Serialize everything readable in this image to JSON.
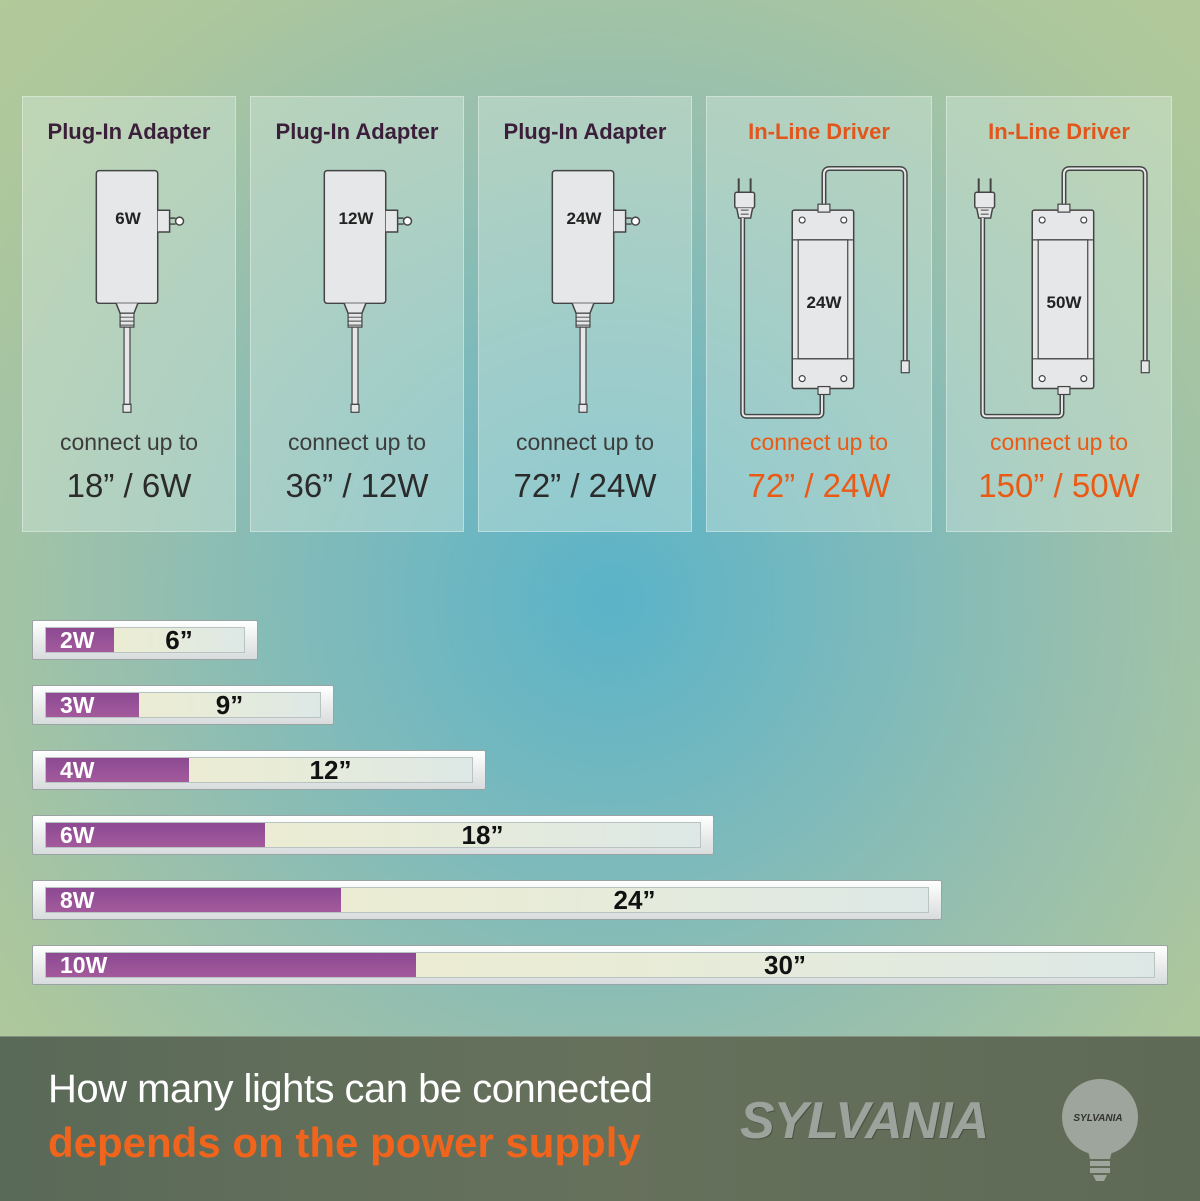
{
  "cards": [
    {
      "title": "Plug-In Adapter",
      "device_label": "6W",
      "connect": "connect up to",
      "spec": "18” / 6W",
      "kind": "adapter"
    },
    {
      "title": "Plug-In Adapter",
      "device_label": "12W",
      "connect": "connect up to",
      "spec": "36” / 12W",
      "kind": "adapter"
    },
    {
      "title": "Plug-In Adapter",
      "device_label": "24W",
      "connect": "connect up to",
      "spec": "72” / 24W",
      "kind": "adapter"
    },
    {
      "title": "In-Line Driver",
      "device_label": "24W",
      "connect": "connect up to",
      "spec": "72” / 24W",
      "kind": "driver"
    },
    {
      "title": "In-Line Driver",
      "device_label": "50W",
      "connect": "connect up to",
      "spec": "150” / 50W",
      "kind": "driver"
    }
  ],
  "bars": [
    {
      "watt": "2W",
      "length": "6”"
    },
    {
      "watt": "3W",
      "length": "9”"
    },
    {
      "watt": "4W",
      "length": "12”"
    },
    {
      "watt": "6W",
      "length": "18”"
    },
    {
      "watt": "8W",
      "length": "24”"
    },
    {
      "watt": "10W",
      "length": "30”"
    }
  ],
  "footer": {
    "line1": "How many lights can be connected",
    "line2": "depends on the power supply",
    "brand": "SYLVANIA",
    "bulb_brand": "SYLVANIA"
  },
  "colors": {
    "accent": "#ea5a14",
    "watt_fill": "#8c4a92",
    "adapter_title": "#3b1f3a"
  },
  "icons": {
    "adapter": "plug-in-adapter-icon",
    "driver": "in-line-driver-icon",
    "bulb": "bulb-logo-icon"
  }
}
